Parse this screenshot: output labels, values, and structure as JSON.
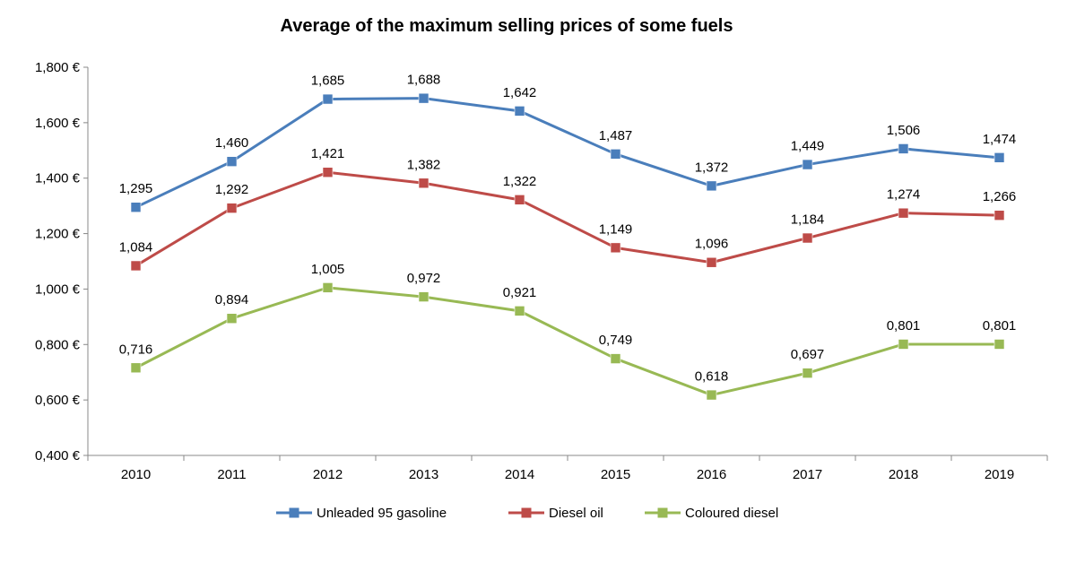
{
  "chart_data": {
    "type": "line",
    "title": "Average of the maximum  selling prices of some fuels",
    "categories": [
      "2010",
      "2011",
      "2012",
      "2013",
      "2014",
      "2015",
      "2016",
      "2017",
      "2018",
      "2019"
    ],
    "ylim": [
      0.4,
      1.8
    ],
    "y_ticks": [
      0.4,
      0.6,
      0.8,
      1.0,
      1.2,
      1.4,
      1.6,
      1.8
    ],
    "y_tick_labels": [
      "0,400 €",
      "0,600 €",
      "0,800 €",
      "1,000 €",
      "1,200 €",
      "1,400 €",
      "1,600 €",
      "1,800 €"
    ],
    "grid": false,
    "legend_position": "bottom",
    "series": [
      {
        "name": "Unleaded 95 gasoline",
        "color": "#4a7ebb",
        "values": [
          1.295,
          1.46,
          1.685,
          1.688,
          1.642,
          1.487,
          1.372,
          1.449,
          1.506,
          1.474
        ],
        "labels": [
          "1,295",
          "1,460",
          "1,685",
          "1,688",
          "1,642",
          "1,487",
          "1,372",
          "1,449",
          "1,506",
          "1,474"
        ]
      },
      {
        "name": "Diesel oil",
        "color": "#be4b48",
        "values": [
          1.084,
          1.292,
          1.421,
          1.382,
          1.322,
          1.149,
          1.096,
          1.184,
          1.274,
          1.266
        ],
        "labels": [
          "1,084",
          "1,292",
          "1,421",
          "1,382",
          "1,322",
          "1,149",
          "1,096",
          "1,184",
          "1,274",
          "1,266"
        ]
      },
      {
        "name": "Coloured diesel",
        "color": "#98b954",
        "values": [
          0.716,
          0.894,
          1.005,
          0.972,
          0.921,
          0.749,
          0.618,
          0.697,
          0.801,
          0.801
        ],
        "labels": [
          "0,716",
          "0,894",
          "1,005",
          "0,972",
          "0,921",
          "0,749",
          "0,618",
          "0,697",
          "0,801",
          "0,801"
        ]
      }
    ]
  }
}
